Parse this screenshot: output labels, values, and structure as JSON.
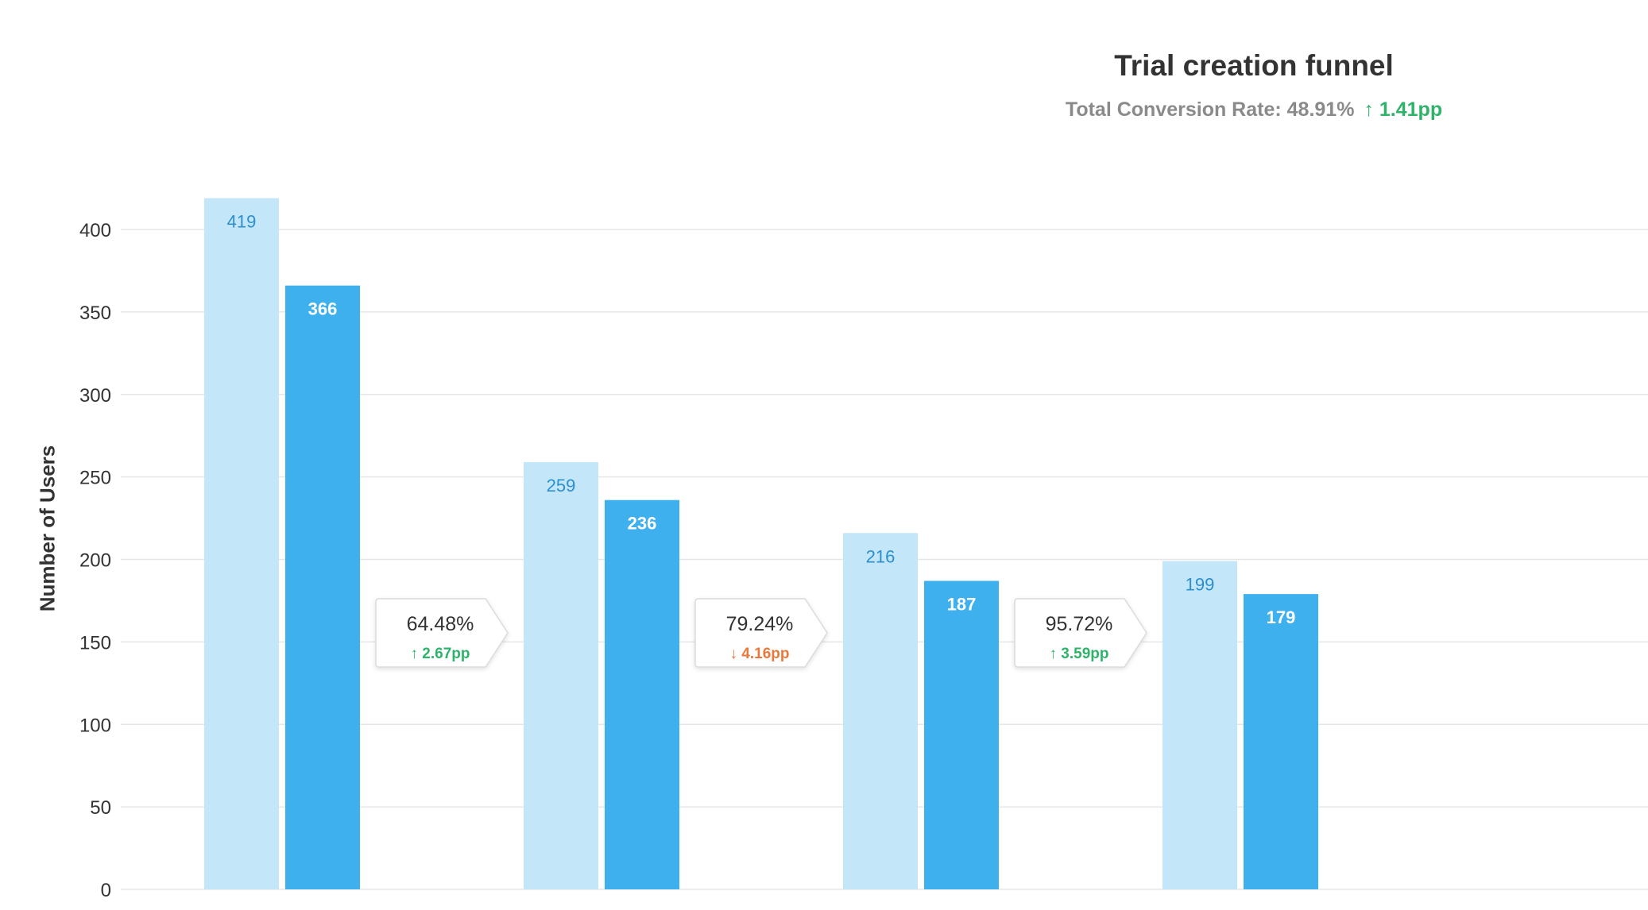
{
  "chart_data": {
    "type": "bar",
    "title": "Trial creation funnel",
    "subtitle": {
      "label": "Total Conversion Rate: 48.91%",
      "delta": "1.41pp",
      "delta_direction": "up"
    },
    "xlabel": "",
    "ylabel": "Number of Users",
    "ylim": [
      0,
      400
    ],
    "yticks": [
      0,
      50,
      100,
      150,
      200,
      250,
      300,
      350,
      400
    ],
    "grid": true,
    "steps": 4,
    "series": [
      {
        "values": [
          419,
          259,
          216,
          199
        ],
        "labels": [
          "419",
          "259",
          "216",
          "199"
        ],
        "color": "#c4e6f9",
        "label_color": "#2b8fd0"
      },
      {
        "values": [
          366,
          236,
          187,
          179
        ],
        "labels": [
          "366",
          "236",
          "187",
          "179"
        ],
        "color": "#3fb0ee",
        "label_color": "#ffffff"
      }
    ],
    "conversions": [
      {
        "rate": "64.48%",
        "delta": "2.67pp",
        "direction": "up"
      },
      {
        "rate": "79.24%",
        "delta": "4.16pp",
        "direction": "down"
      },
      {
        "rate": "95.72%",
        "delta": "3.59pp",
        "direction": "up"
      }
    ],
    "colors": {
      "up": "#2fb36b",
      "down": "#e8793a",
      "grid": "#e6e6e6",
      "axis_text": "#333333"
    }
  }
}
